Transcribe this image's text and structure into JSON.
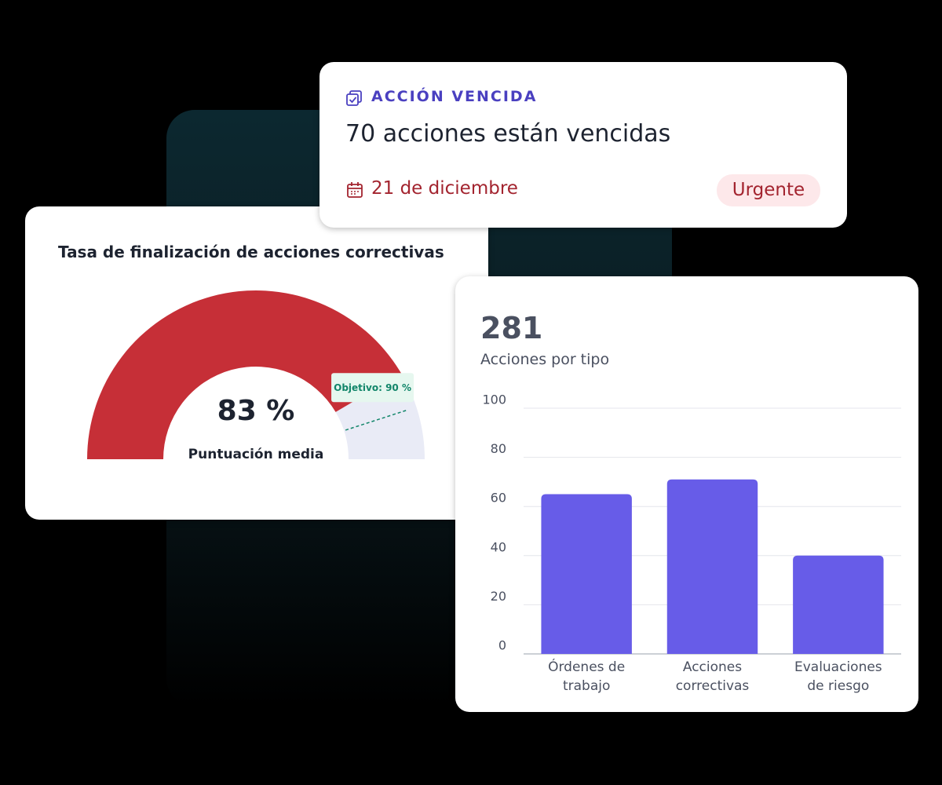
{
  "alert": {
    "label": "ACCIÓN VENCIDA",
    "title": "70 acciones están vencidas",
    "date": "21 de diciembre",
    "badge": "Urgente"
  },
  "gauge": {
    "type": "gauge",
    "title": "Tasa de finalización de acciones correctivas",
    "value": 83,
    "value_label": "83 %",
    "subtitle": "Puntuación media",
    "target": 90,
    "target_label": "Objetivo: 90 %",
    "range": [
      0,
      100
    ],
    "color": "#c62f37",
    "track_color": "#e9ebf6",
    "target_color": "#12866a"
  },
  "chart_data": {
    "type": "bar",
    "total": "281",
    "title": "Acciones por tipo",
    "categories": [
      "Órdenes de trabajo",
      "Acciones correctivas",
      "Evaluaciones de riesgo"
    ],
    "values": [
      65,
      71,
      40
    ],
    "color": "#675ce8",
    "ylim": [
      0,
      100
    ],
    "yticks": [
      0,
      20,
      40,
      60,
      80,
      100
    ],
    "grid": true
  }
}
